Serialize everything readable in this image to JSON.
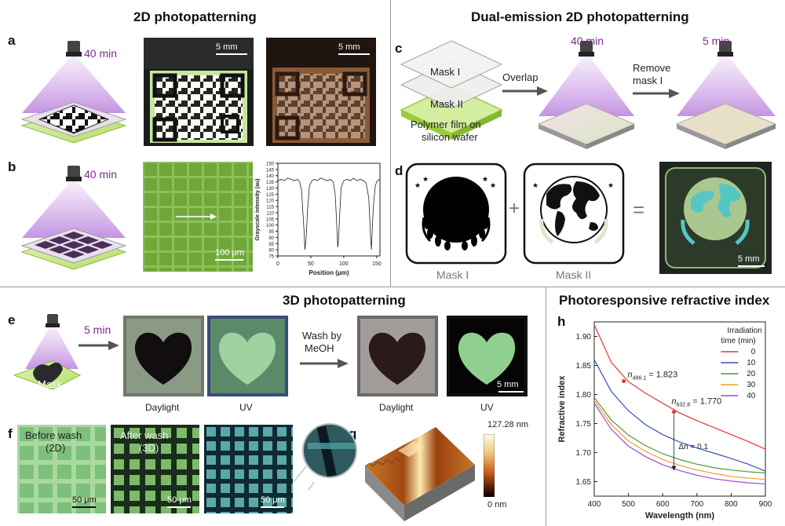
{
  "sections": {
    "s2d": "2D photopatterning",
    "dual": "Dual-emission 2D photopatterning",
    "s3d": "3D photopatterning",
    "refr": "Photoresponsive refractive index"
  },
  "panels": {
    "a": "a",
    "b": "b",
    "c": "c",
    "d": "d",
    "e": "e",
    "f": "f",
    "g": "g",
    "h": "h"
  },
  "times": {
    "a": "40 min",
    "b": "40 min",
    "c1": "40 min",
    "c2": "5 min",
    "e": "5 min"
  },
  "scalebars": {
    "a1": "5 mm",
    "a2": "5 mm",
    "b": "100 μm",
    "d": "5 mm",
    "e": "5 mm",
    "f1": "50 μm",
    "f2": "50 μm",
    "f3": "50 μm"
  },
  "panel_c": {
    "mask1": "Mask I",
    "mask2": "Mask II",
    "film_line1": "Polymer film on",
    "film_line2": "silicon wafer",
    "overlap": "Overlap",
    "remove_line1": "Remove",
    "remove_line2": "mask I"
  },
  "panel_d": {
    "mask1": "Mask I",
    "mask2": "Mask II",
    "plus": "+",
    "equals": "="
  },
  "panel_e": {
    "mask": "Mask",
    "wash_line1": "Wash by",
    "wash_line2": "MeOH",
    "daylight1": "Daylight",
    "uv1": "UV",
    "daylight2": "Daylight",
    "uv2": "UV"
  },
  "panel_f": {
    "before_line1": "Before wash",
    "before_line2": "(2D)",
    "after_line1": "After wash",
    "after_line2": "(3D)"
  },
  "panel_g": {
    "colorbar_max": "127.28 nm",
    "colorbar_min": "0 nm"
  },
  "chart_data": [
    {
      "type": "line",
      "panel": "b",
      "xlabel": "Position (μm)",
      "ylabel": "Grayscale intensity (au)",
      "xlim": [
        0,
        155
      ],
      "ylim": [
        75,
        150
      ],
      "xticks": [
        0,
        50,
        100,
        150
      ],
      "yticks": [
        75,
        80,
        85,
        90,
        95,
        100,
        105,
        110,
        115,
        120,
        125,
        130,
        135,
        140,
        145,
        150
      ],
      "x": [
        0,
        5,
        10,
        15,
        20,
        25,
        30,
        33,
        36,
        38,
        40,
        41,
        43,
        45,
        48,
        52,
        55,
        60,
        65,
        70,
        75,
        80,
        84,
        87,
        89,
        90,
        91,
        92,
        94,
        96,
        100,
        105,
        110,
        115,
        120,
        125,
        130,
        134,
        138,
        140,
        141,
        142,
        143,
        145,
        148,
        151,
        155
      ],
      "y": [
        136,
        137,
        136,
        138,
        137,
        136,
        137,
        135,
        128,
        110,
        93,
        80,
        90,
        112,
        132,
        136,
        137,
        136,
        138,
        137,
        136,
        137,
        135,
        125,
        105,
        92,
        82,
        88,
        110,
        130,
        136,
        137,
        136,
        138,
        136,
        137,
        136,
        134,
        122,
        100,
        88,
        80,
        92,
        115,
        132,
        136,
        137
      ]
    },
    {
      "type": "line",
      "panel": "h",
      "xlabel": "Wavelength (nm)",
      "ylabel": "Refractive index",
      "xlim": [
        400,
        900
      ],
      "ylim": [
        1.625,
        1.925
      ],
      "xticks": [
        400,
        500,
        600,
        700,
        800,
        900
      ],
      "yticks": [
        1.65,
        1.7,
        1.75,
        1.8,
        1.85,
        1.9
      ],
      "legend_title_line1": "Irradiation",
      "legend_title_line2": "time (min)",
      "legend_position": "top-right",
      "x": [
        400,
        450,
        500,
        550,
        600,
        650,
        700,
        750,
        800,
        850,
        900
      ],
      "series": [
        {
          "name": "0",
          "color": "#e8343a",
          "values": [
            1.92,
            1.855,
            1.822,
            1.802,
            1.785,
            1.768,
            1.755,
            1.743,
            1.731,
            1.719,
            1.706
          ]
        },
        {
          "name": "10",
          "color": "#3a4fc2",
          "values": [
            1.86,
            1.805,
            1.772,
            1.748,
            1.731,
            1.718,
            1.708,
            1.699,
            1.69,
            1.68,
            1.668
          ]
        },
        {
          "name": "20",
          "color": "#4f9a2e",
          "values": [
            1.795,
            1.756,
            1.73,
            1.712,
            1.698,
            1.688,
            1.68,
            1.674,
            1.67,
            1.667,
            1.665
          ]
        },
        {
          "name": "30",
          "color": "#f29a2e",
          "values": [
            1.79,
            1.748,
            1.72,
            1.702,
            1.688,
            1.678,
            1.67,
            1.664,
            1.659,
            1.656,
            1.654
          ]
        },
        {
          "name": "40",
          "color": "#9a4fd1",
          "values": [
            1.785,
            1.74,
            1.711,
            1.693,
            1.679,
            1.669,
            1.661,
            1.655,
            1.651,
            1.648,
            1.646
          ]
        }
      ],
      "annotations": [
        {
          "prefix": "n",
          "sub": "486.1",
          "suffix": " = 1.823",
          "x": 486.1,
          "y": 1.823
        },
        {
          "prefix": "n",
          "sub": "632.8",
          "suffix": " = 1.770",
          "x": 632.8,
          "y": 1.77
        },
        {
          "text": "Δn = 0.1"
        }
      ]
    }
  ]
}
